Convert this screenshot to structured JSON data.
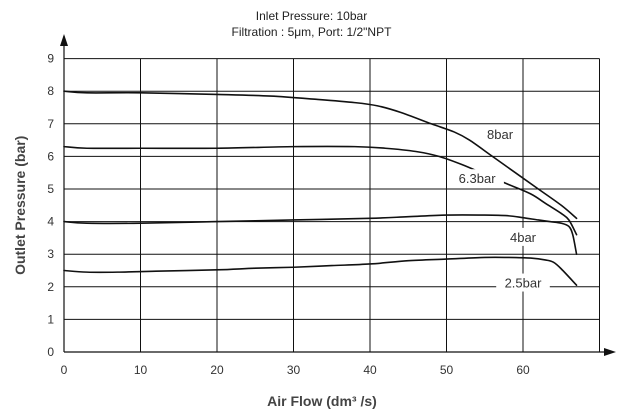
{
  "chart_data": {
    "type": "line",
    "title": "Inlet Pressure: 10bar",
    "subtitle": "Filtration : 5μm, Port: 1/2\"NPT",
    "xlabel": "Air Flow (dm³ /s)",
    "ylabel": "Outlet Pressure (bar)",
    "xlim": [
      0,
      70
    ],
    "ylim": [
      0,
      9
    ],
    "xticks": [
      0,
      10,
      20,
      30,
      40,
      50,
      60
    ],
    "yticks": [
      0,
      1,
      2,
      3,
      4,
      5,
      6,
      7,
      8,
      9
    ],
    "grid": true,
    "series": [
      {
        "name": "8bar",
        "x": [
          0,
          3,
          10,
          20,
          27,
          33,
          38,
          41,
          44,
          48,
          51,
          53,
          56,
          59,
          62,
          65,
          67
        ],
        "y": [
          8.0,
          7.95,
          7.95,
          7.9,
          7.85,
          7.75,
          7.65,
          7.55,
          7.35,
          7.0,
          6.75,
          6.5,
          6.0,
          5.5,
          5.0,
          4.5,
          4.1
        ]
      },
      {
        "name": "6.3bar",
        "x": [
          0,
          3,
          10,
          20,
          30,
          38,
          42,
          46,
          49,
          52,
          55,
          58,
          61,
          63,
          65,
          66,
          67
        ],
        "y": [
          6.3,
          6.25,
          6.25,
          6.25,
          6.3,
          6.3,
          6.25,
          6.15,
          6.0,
          5.75,
          5.45,
          5.15,
          4.85,
          4.55,
          4.25,
          4.05,
          3.6
        ]
      },
      {
        "name": "4bar",
        "x": [
          0,
          3,
          10,
          20,
          30,
          40,
          45,
          50,
          55,
          58,
          60,
          62,
          63.5,
          65,
          66,
          66.5,
          67
        ],
        "y": [
          4.0,
          3.95,
          3.95,
          4.0,
          4.05,
          4.1,
          4.15,
          4.2,
          4.2,
          4.18,
          4.12,
          4.05,
          4.0,
          3.95,
          3.85,
          3.6,
          3.0
        ]
      },
      {
        "name": "2.5bar",
        "x": [
          0,
          3,
          7,
          12,
          20,
          25,
          30,
          35,
          40,
          45,
          50,
          55,
          58,
          61,
          63,
          64,
          65,
          67
        ],
        "y": [
          2.5,
          2.45,
          2.45,
          2.48,
          2.52,
          2.57,
          2.6,
          2.65,
          2.7,
          2.8,
          2.85,
          2.9,
          2.9,
          2.88,
          2.82,
          2.75,
          2.55,
          2.05
        ]
      }
    ]
  }
}
